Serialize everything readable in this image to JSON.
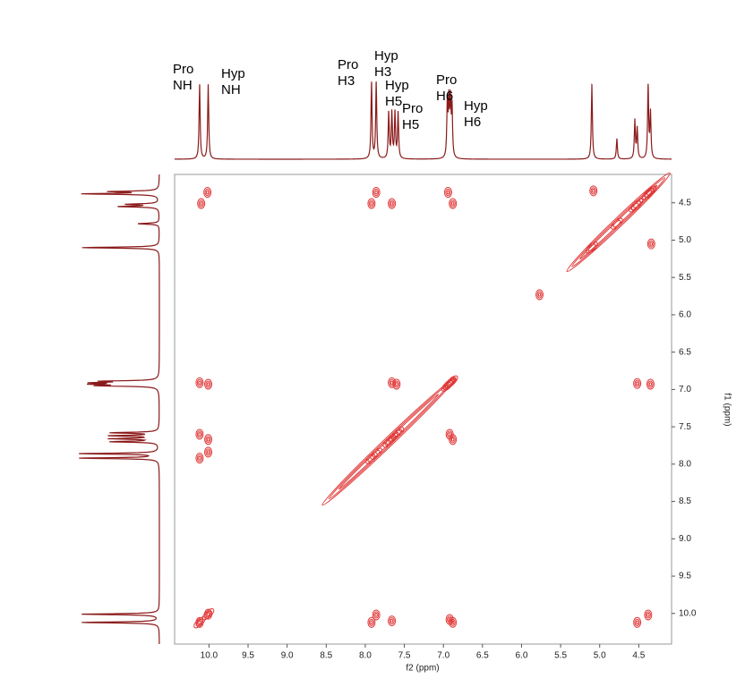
{
  "chart_data": {
    "type": "contour",
    "x_label": "f2 (ppm)",
    "y_label": "f1 (ppm)",
    "xlim": [
      10.44,
      4.08
    ],
    "ylim": [
      4.12,
      10.41
    ],
    "xticks": [
      {
        "value": 10,
        "label": "10.0"
      },
      9.5,
      {
        "value": 9,
        "label": "9.0"
      },
      8.5,
      {
        "value": 8,
        "label": "8.0"
      },
      7.5,
      {
        "value": 7,
        "label": "7.0"
      },
      6.5,
      {
        "value": 6,
        "label": "6.0"
      },
      5.5,
      {
        "value": 5,
        "label": "5.0"
      },
      4.5
    ],
    "yticks": [
      4.5,
      {
        "value": 5,
        "label": "5.0"
      },
      5.5,
      {
        "value": 6,
        "label": "6.0"
      },
      6.5,
      {
        "value": 7,
        "label": "7.0"
      },
      7.5,
      {
        "value": 8,
        "label": "8.0"
      },
      8.5,
      {
        "value": 9,
        "label": "9.0"
      },
      9.5,
      {
        "value": 10,
        "label": "10.0"
      }
    ],
    "contour_color": "#e03a3a",
    "trace_color": "#8b1a1a",
    "spectrum": {
      "ppm": [
        10.12,
        10.01,
        7.92,
        7.86,
        7.7,
        7.66,
        7.62,
        7.58,
        6.95,
        6.93,
        6.91,
        6.89,
        5.1,
        4.78,
        4.55,
        4.52,
        4.38,
        4.35
      ],
      "intensity": [
        98,
        98,
        100,
        100,
        60,
        60,
        60,
        60,
        70,
        70,
        70,
        65,
        98,
        27,
        50,
        40,
        95,
        60
      ]
    },
    "cross_peaks": {
      "x": [
        10.02,
        10.1,
        7.86,
        7.92,
        7.66,
        6.94,
        6.88,
        5.08,
        4.34,
        5.77,
        10.12,
        10.01,
        7.66,
        7.6,
        4.52,
        4.35,
        10.12,
        10.01,
        6.92,
        6.88,
        10.12,
        10.01,
        10.12,
        10.01,
        7.92,
        7.86,
        7.66,
        6.92,
        6.88,
        4.52,
        4.38
      ],
      "y": [
        4.36,
        4.51,
        4.36,
        4.51,
        4.51,
        4.36,
        4.51,
        4.34,
        5.05,
        5.73,
        6.91,
        6.93,
        6.91,
        6.93,
        6.92,
        6.93,
        7.6,
        7.67,
        7.6,
        7.67,
        7.92,
        7.84,
        10.12,
        10.01,
        10.12,
        10.02,
        10.1,
        10.08,
        10.12,
        10.12,
        10.02
      ]
    },
    "diagonal": {
      "x": [
        8.55,
        5.42
      ],
      "x_end": [
        6.85,
        4.1
      ]
    },
    "annotations": [
      [
        "Pro",
        "NH"
      ],
      [
        "Hyp",
        "NH"
      ],
      [
        "Pro",
        "H3"
      ],
      [
        "Hyp",
        "H3"
      ],
      [
        "Hyp",
        "H5"
      ],
      [
        "Pro",
        "H5"
      ],
      [
        "Pro",
        "H6"
      ],
      [
        "Hyp",
        "H6"
      ]
    ]
  }
}
